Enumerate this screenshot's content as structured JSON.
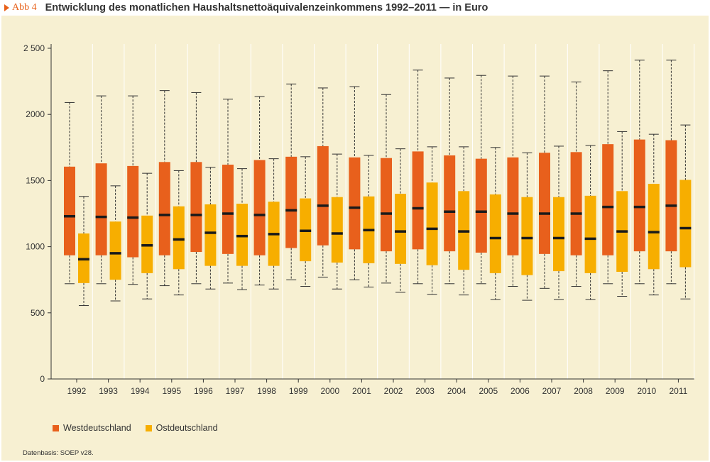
{
  "figure": {
    "label": "Abb 4",
    "title": "Entwicklung des monatlichen Haushaltsnettoäquivalenzeinkommens 1992–2011 — in Euro"
  },
  "colors": {
    "background": "#f7f0d2",
    "west": "#e8601c",
    "east": "#f7ae00",
    "median": "#1a1a1a",
    "grid": "#ffffff",
    "accent": "#e8611a"
  },
  "legend": {
    "west": "Westdeutschland",
    "east": "Ostdeutschland"
  },
  "source": "Datenbasis: SOEP v28.",
  "chart_data": {
    "type": "boxplot",
    "title": "Entwicklung des monatlichen Haushaltsnettoäquivalenzeinkommens 1992–2011 — in Euro",
    "ylim": [
      0,
      2500
    ],
    "yticks": [
      0,
      500,
      1000,
      1500,
      2000,
      2500
    ],
    "ytick_labels": [
      "0",
      "500",
      "1000",
      "1500",
      "2000",
      "2 500"
    ],
    "grid": true,
    "legend_placement": "bottom-left",
    "categories": [
      "1992",
      "1993",
      "1994",
      "1995",
      "1996",
      "1997",
      "1998",
      "1999",
      "2000",
      "2001",
      "2002",
      "2003",
      "2004",
      "2005",
      "2006",
      "2007",
      "2008",
      "2009",
      "2010",
      "2011"
    ],
    "series": [
      {
        "name": "Westdeutschland",
        "color": "#e8601c",
        "whisker_low": [
          720,
          720,
          715,
          705,
          720,
          725,
          710,
          750,
          770,
          750,
          725,
          720,
          720,
          720,
          700,
          685,
          700,
          720,
          720,
          720
        ],
        "q1": [
          935,
          935,
          920,
          935,
          960,
          945,
          935,
          990,
          1010,
          980,
          965,
          980,
          965,
          955,
          935,
          945,
          935,
          935,
          965,
          965
        ],
        "median": [
          1230,
          1225,
          1220,
          1240,
          1240,
          1250,
          1240,
          1275,
          1310,
          1295,
          1250,
          1290,
          1265,
          1265,
          1250,
          1250,
          1250,
          1300,
          1300,
          1310
        ],
        "q3": [
          1605,
          1630,
          1610,
          1640,
          1640,
          1620,
          1655,
          1680,
          1760,
          1675,
          1670,
          1720,
          1690,
          1665,
          1675,
          1710,
          1715,
          1775,
          1810,
          1805
        ],
        "whisker_high": [
          2090,
          2140,
          2140,
          2180,
          2165,
          2115,
          2135,
          2230,
          2200,
          2210,
          2150,
          2335,
          2275,
          2295,
          2290,
          2290,
          2245,
          2330,
          2410,
          2410
        ]
      },
      {
        "name": "Ostdeutschland",
        "color": "#f7ae00",
        "whisker_low": [
          555,
          590,
          605,
          635,
          680,
          675,
          680,
          700,
          680,
          695,
          655,
          640,
          635,
          600,
          595,
          600,
          600,
          625,
          635,
          605
        ],
        "q1": [
          725,
          750,
          800,
          830,
          855,
          855,
          855,
          890,
          880,
          875,
          870,
          860,
          825,
          800,
          785,
          815,
          800,
          810,
          830,
          845
        ],
        "median": [
          905,
          950,
          1010,
          1055,
          1105,
          1080,
          1095,
          1120,
          1100,
          1125,
          1115,
          1135,
          1115,
          1065,
          1065,
          1065,
          1060,
          1115,
          1110,
          1140
        ],
        "q3": [
          1100,
          1190,
          1235,
          1305,
          1320,
          1325,
          1340,
          1365,
          1375,
          1380,
          1400,
          1485,
          1420,
          1395,
          1375,
          1375,
          1385,
          1420,
          1475,
          1505
        ],
        "whisker_high": [
          1380,
          1460,
          1555,
          1575,
          1600,
          1590,
          1665,
          1680,
          1700,
          1690,
          1740,
          1755,
          1755,
          1750,
          1710,
          1760,
          1765,
          1870,
          1850,
          1920
        ]
      }
    ]
  }
}
